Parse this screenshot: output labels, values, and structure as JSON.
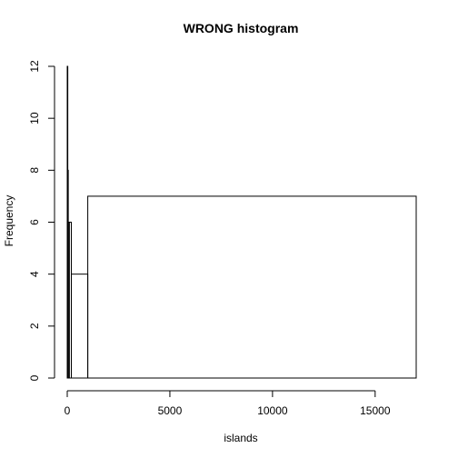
{
  "chart_data": {
    "type": "bar",
    "title": "WRONG histogram",
    "xlabel": "islands",
    "ylabel": "Frequency",
    "xlim": [
      0,
      17000
    ],
    "ylim": [
      0,
      12
    ],
    "x_ticks": [
      0,
      5000,
      10000,
      15000
    ],
    "y_ticks": [
      0,
      2,
      4,
      6,
      8,
      10,
      12
    ],
    "bins": [
      {
        "x0": 0,
        "x1": 20,
        "count": 12
      },
      {
        "x0": 20,
        "x1": 50,
        "count": 8
      },
      {
        "x0": 50,
        "x1": 100,
        "count": 6
      },
      {
        "x0": 100,
        "x1": 200,
        "count": 6
      },
      {
        "x0": 200,
        "x1": 1000,
        "count": 4
      },
      {
        "x0": 1000,
        "x1": 17000,
        "count": 7
      }
    ],
    "grid": false,
    "legend": "none"
  }
}
